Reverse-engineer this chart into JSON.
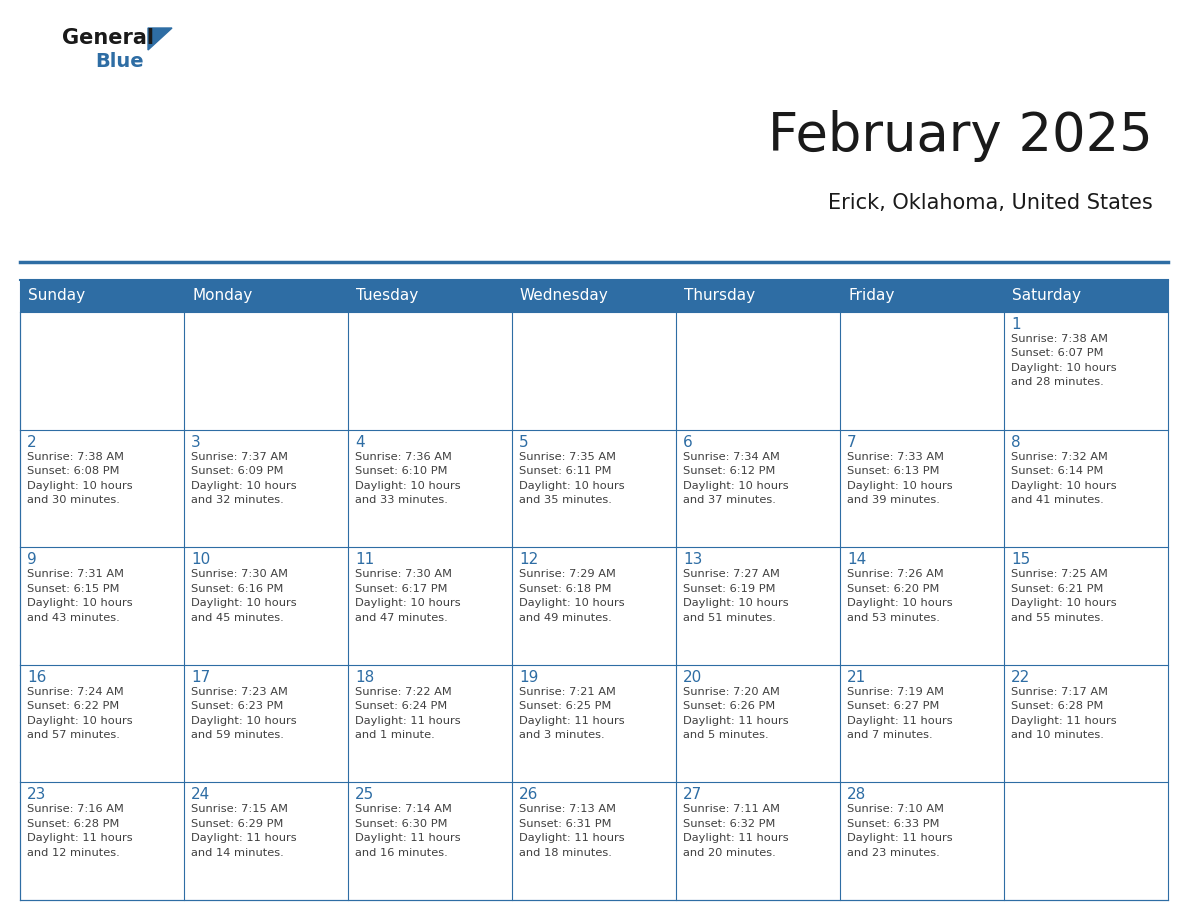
{
  "title": "February 2025",
  "subtitle": "Erick, Oklahoma, United States",
  "days_of_week": [
    "Sunday",
    "Monday",
    "Tuesday",
    "Wednesday",
    "Thursday",
    "Friday",
    "Saturday"
  ],
  "header_bg": "#2E6DA4",
  "header_text": "#FFFFFF",
  "cell_bg": "#FFFFFF",
  "border_color": "#2E6DA4",
  "day_num_color": "#2E6DA4",
  "cell_text_color": "#404040",
  "title_color": "#1a1a1a",
  "subtitle_color": "#1a1a1a",
  "logo_general_color": "#1a1a1a",
  "logo_blue_color": "#2E6DA4",
  "logo_triangle_color": "#2E6DA4",
  "calendar": [
    [
      {
        "day": null,
        "info": ""
      },
      {
        "day": null,
        "info": ""
      },
      {
        "day": null,
        "info": ""
      },
      {
        "day": null,
        "info": ""
      },
      {
        "day": null,
        "info": ""
      },
      {
        "day": null,
        "info": ""
      },
      {
        "day": 1,
        "info": "Sunrise: 7:38 AM\nSunset: 6:07 PM\nDaylight: 10 hours\nand 28 minutes."
      }
    ],
    [
      {
        "day": 2,
        "info": "Sunrise: 7:38 AM\nSunset: 6:08 PM\nDaylight: 10 hours\nand 30 minutes."
      },
      {
        "day": 3,
        "info": "Sunrise: 7:37 AM\nSunset: 6:09 PM\nDaylight: 10 hours\nand 32 minutes."
      },
      {
        "day": 4,
        "info": "Sunrise: 7:36 AM\nSunset: 6:10 PM\nDaylight: 10 hours\nand 33 minutes."
      },
      {
        "day": 5,
        "info": "Sunrise: 7:35 AM\nSunset: 6:11 PM\nDaylight: 10 hours\nand 35 minutes."
      },
      {
        "day": 6,
        "info": "Sunrise: 7:34 AM\nSunset: 6:12 PM\nDaylight: 10 hours\nand 37 minutes."
      },
      {
        "day": 7,
        "info": "Sunrise: 7:33 AM\nSunset: 6:13 PM\nDaylight: 10 hours\nand 39 minutes."
      },
      {
        "day": 8,
        "info": "Sunrise: 7:32 AM\nSunset: 6:14 PM\nDaylight: 10 hours\nand 41 minutes."
      }
    ],
    [
      {
        "day": 9,
        "info": "Sunrise: 7:31 AM\nSunset: 6:15 PM\nDaylight: 10 hours\nand 43 minutes."
      },
      {
        "day": 10,
        "info": "Sunrise: 7:30 AM\nSunset: 6:16 PM\nDaylight: 10 hours\nand 45 minutes."
      },
      {
        "day": 11,
        "info": "Sunrise: 7:30 AM\nSunset: 6:17 PM\nDaylight: 10 hours\nand 47 minutes."
      },
      {
        "day": 12,
        "info": "Sunrise: 7:29 AM\nSunset: 6:18 PM\nDaylight: 10 hours\nand 49 minutes."
      },
      {
        "day": 13,
        "info": "Sunrise: 7:27 AM\nSunset: 6:19 PM\nDaylight: 10 hours\nand 51 minutes."
      },
      {
        "day": 14,
        "info": "Sunrise: 7:26 AM\nSunset: 6:20 PM\nDaylight: 10 hours\nand 53 minutes."
      },
      {
        "day": 15,
        "info": "Sunrise: 7:25 AM\nSunset: 6:21 PM\nDaylight: 10 hours\nand 55 minutes."
      }
    ],
    [
      {
        "day": 16,
        "info": "Sunrise: 7:24 AM\nSunset: 6:22 PM\nDaylight: 10 hours\nand 57 minutes."
      },
      {
        "day": 17,
        "info": "Sunrise: 7:23 AM\nSunset: 6:23 PM\nDaylight: 10 hours\nand 59 minutes."
      },
      {
        "day": 18,
        "info": "Sunrise: 7:22 AM\nSunset: 6:24 PM\nDaylight: 11 hours\nand 1 minute."
      },
      {
        "day": 19,
        "info": "Sunrise: 7:21 AM\nSunset: 6:25 PM\nDaylight: 11 hours\nand 3 minutes."
      },
      {
        "day": 20,
        "info": "Sunrise: 7:20 AM\nSunset: 6:26 PM\nDaylight: 11 hours\nand 5 minutes."
      },
      {
        "day": 21,
        "info": "Sunrise: 7:19 AM\nSunset: 6:27 PM\nDaylight: 11 hours\nand 7 minutes."
      },
      {
        "day": 22,
        "info": "Sunrise: 7:17 AM\nSunset: 6:28 PM\nDaylight: 11 hours\nand 10 minutes."
      }
    ],
    [
      {
        "day": 23,
        "info": "Sunrise: 7:16 AM\nSunset: 6:28 PM\nDaylight: 11 hours\nand 12 minutes."
      },
      {
        "day": 24,
        "info": "Sunrise: 7:15 AM\nSunset: 6:29 PM\nDaylight: 11 hours\nand 14 minutes."
      },
      {
        "day": 25,
        "info": "Sunrise: 7:14 AM\nSunset: 6:30 PM\nDaylight: 11 hours\nand 16 minutes."
      },
      {
        "day": 26,
        "info": "Sunrise: 7:13 AM\nSunset: 6:31 PM\nDaylight: 11 hours\nand 18 minutes."
      },
      {
        "day": 27,
        "info": "Sunrise: 7:11 AM\nSunset: 6:32 PM\nDaylight: 11 hours\nand 20 minutes."
      },
      {
        "day": 28,
        "info": "Sunrise: 7:10 AM\nSunset: 6:33 PM\nDaylight: 11 hours\nand 23 minutes."
      },
      {
        "day": null,
        "info": ""
      }
    ]
  ]
}
